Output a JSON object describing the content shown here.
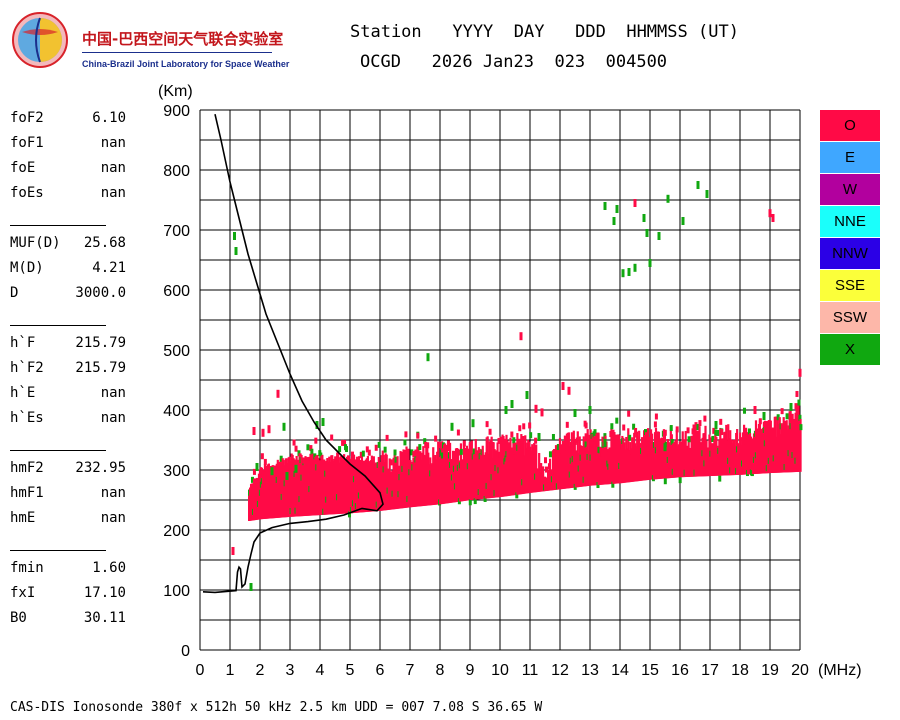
{
  "logo": {
    "name_cn": "中国-巴西空间天气联合实验室",
    "name_en": "China-Brazil Joint Laboratory for Space Weather"
  },
  "header": {
    "line1": "Station   YYYY  DAY   DDD  HHMMSS (UT)",
    "line2": "OCGD   2026 Jan23  023  004500"
  },
  "params": [
    {
      "group": [
        {
          "k": "foF2",
          "v": "6.10"
        },
        {
          "k": "foF1",
          "v": "nan"
        },
        {
          "k": "foE",
          "v": "nan"
        },
        {
          "k": "foEs",
          "v": "nan"
        }
      ]
    },
    {
      "group": [
        {
          "k": "MUF(D)",
          "v": "25.68"
        },
        {
          "k": "M(D)",
          "v": "4.21"
        },
        {
          "k": "D",
          "v": "3000.0"
        }
      ]
    },
    {
      "group": [
        {
          "k": "h`F",
          "v": "215.79"
        },
        {
          "k": "h`F2",
          "v": "215.79"
        },
        {
          "k": "h`E",
          "v": "nan"
        },
        {
          "k": "h`Es",
          "v": "nan"
        }
      ]
    },
    {
      "group": [
        {
          "k": "hmF2",
          "v": "232.95"
        },
        {
          "k": "hmF1",
          "v": "nan"
        },
        {
          "k": "hmE",
          "v": "nan"
        }
      ]
    },
    {
      "group": [
        {
          "k": "fmin",
          "v": "1.60"
        },
        {
          "k": "fxI",
          "v": "17.10"
        },
        {
          "k": "B0",
          "v": "30.11"
        }
      ]
    }
  ],
  "footer": "CAS-DIS Ionosonde 380f x 512h 50 kHz 2.5 km UDD = 007 7.08 S 36.65 W",
  "legend": [
    {
      "label": "O",
      "color": "#ff0a46"
    },
    {
      "label": "E",
      "color": "#3fa7ff"
    },
    {
      "label": "W",
      "color": "#b2009e"
    },
    {
      "label": "NNE",
      "color": "#1afffb"
    },
    {
      "label": "NNW",
      "color": "#2b00e6"
    },
    {
      "label": "SSE",
      "color": "#fbff3a"
    },
    {
      "label": "SSW",
      "color": "#fdb7a9"
    },
    {
      "label": "X",
      "color": "#10a810"
    }
  ],
  "chart_data": {
    "type": "scatter",
    "xlabel": "(MHz)",
    "ylabel": "(Km)",
    "xlim": [
      0,
      20
    ],
    "ylim": [
      0,
      900
    ],
    "xticks": [
      0,
      1,
      2,
      3,
      4,
      5,
      6,
      7,
      8,
      9,
      10,
      11,
      12,
      13,
      14,
      15,
      16,
      17,
      18,
      19,
      20
    ],
    "yticks": [
      0,
      100,
      200,
      300,
      400,
      500,
      600,
      700,
      800,
      900
    ],
    "grid": true,
    "profile": {
      "x": [
        0.1,
        0.5,
        1.2,
        1.25,
        1.3,
        1.35,
        1.4,
        1.5,
        1.6,
        1.7,
        1.8,
        2.0,
        2.4,
        3.0,
        3.6,
        4.2,
        4.8,
        5.4,
        5.9,
        6.1,
        6.0,
        5.5,
        5.0,
        4.6,
        4.2,
        3.8,
        3.4,
        3.0,
        2.6,
        2.2,
        1.9,
        1.6,
        1.3,
        1.0,
        0.7,
        0.5
      ],
      "y": [
        97,
        96,
        99,
        130,
        138,
        135,
        105,
        110,
        138,
        160,
        180,
        195,
        204,
        211,
        214,
        218,
        225,
        236,
        232,
        243,
        262,
        290,
        310,
        330,
        350,
        380,
        415,
        460,
        510,
        560,
        610,
        660,
        720,
        780,
        850,
        893
      ]
    },
    "o_mode_trace": {
      "x": [
        1.6,
        2.0,
        3.0,
        4.0,
        5.0,
        6.0,
        7.0,
        8.0,
        9.0,
        10.0,
        11.0,
        11.5,
        12.0,
        13.0,
        14.0,
        15.0,
        16.0,
        17.0,
        18.0,
        19.0,
        20.0
      ],
      "y_low": [
        215,
        218,
        222,
        225,
        228,
        232,
        238,
        243,
        250,
        255,
        262,
        265,
        268,
        274,
        278,
        284,
        288,
        290,
        292,
        295,
        297
      ],
      "y_high": [
        265,
        300,
        320,
        320,
        320,
        315,
        320,
        330,
        335,
        340,
        345,
        290,
        345,
        350,
        350,
        350,
        355,
        355,
        360,
        370,
        395
      ]
    },
    "o_mode_scatter": [
      {
        "x": 1.1,
        "y": 165
      },
      {
        "x": 2.6,
        "y": 427
      },
      {
        "x": 10.7,
        "y": 523
      },
      {
        "x": 14.5,
        "y": 745
      },
      {
        "x": 19.0,
        "y": 728
      },
      {
        "x": 19.1,
        "y": 720
      },
      {
        "x": 20.0,
        "y": 462
      },
      {
        "x": 1.8,
        "y": 365
      },
      {
        "x": 2.1,
        "y": 362
      },
      {
        "x": 2.3,
        "y": 368
      },
      {
        "x": 12.1,
        "y": 440
      },
      {
        "x": 12.3,
        "y": 432
      },
      {
        "x": 11.2,
        "y": 402
      },
      {
        "x": 11.4,
        "y": 396
      },
      {
        "x": 18.5,
        "y": 400
      }
    ],
    "x_mode_scatter": [
      {
        "x": 1.15,
        "y": 690
      },
      {
        "x": 1.2,
        "y": 665
      },
      {
        "x": 1.7,
        "y": 105
      },
      {
        "x": 7.6,
        "y": 488
      },
      {
        "x": 13.5,
        "y": 740
      },
      {
        "x": 13.8,
        "y": 715
      },
      {
        "x": 13.9,
        "y": 735
      },
      {
        "x": 14.1,
        "y": 628
      },
      {
        "x": 14.3,
        "y": 630
      },
      {
        "x": 14.5,
        "y": 637
      },
      {
        "x": 14.8,
        "y": 720
      },
      {
        "x": 14.9,
        "y": 695
      },
      {
        "x": 15.0,
        "y": 645
      },
      {
        "x": 15.3,
        "y": 690
      },
      {
        "x": 15.6,
        "y": 752
      },
      {
        "x": 16.1,
        "y": 715
      },
      {
        "x": 16.6,
        "y": 775
      },
      {
        "x": 16.9,
        "y": 760
      },
      {
        "x": 1.9,
        "y": 305
      },
      {
        "x": 2.4,
        "y": 298
      },
      {
        "x": 2.9,
        "y": 290
      },
      {
        "x": 3.2,
        "y": 302
      },
      {
        "x": 4.1,
        "y": 380
      },
      {
        "x": 3.9,
        "y": 375
      },
      {
        "x": 2.8,
        "y": 372
      },
      {
        "x": 10.4,
        "y": 410
      },
      {
        "x": 10.9,
        "y": 425
      },
      {
        "x": 10.2,
        "y": 400
      },
      {
        "x": 12.5,
        "y": 395
      },
      {
        "x": 13.0,
        "y": 400
      },
      {
        "x": 9.1,
        "y": 378
      },
      {
        "x": 8.4,
        "y": 372
      },
      {
        "x": 17.2,
        "y": 375
      },
      {
        "x": 18.8,
        "y": 390
      },
      {
        "x": 19.7,
        "y": 405
      },
      {
        "x": 11.3,
        "y": 355
      },
      {
        "x": 13.5,
        "y": 345
      },
      {
        "x": 15.5,
        "y": 338
      }
    ]
  }
}
